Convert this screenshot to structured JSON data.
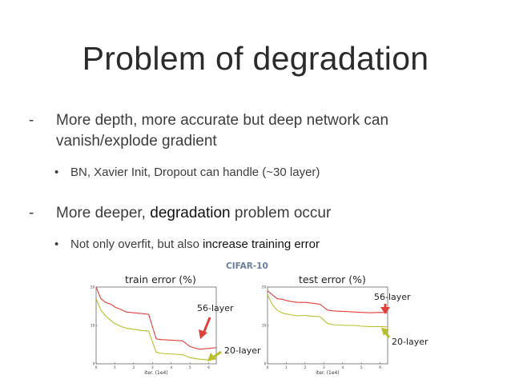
{
  "slide": {
    "title": "Problem of degradation",
    "bullet1": {
      "dash": "-",
      "line1": "More depth, more accurate but deep network can",
      "line2": "vanish/explode gradient"
    },
    "sub1": {
      "dot": "•",
      "text": "BN, Xavier Init, Dropout can handle (~30 layer)"
    },
    "bullet2": {
      "dash": "-",
      "pre": "More deeper, ",
      "em": "degradation",
      "post": " problem occur"
    },
    "sub2": {
      "dot": "•",
      "pre": "Not only overfit, but also ",
      "em": "increase training error"
    }
  },
  "figure": {
    "dataset_label": "CIFAR-10",
    "colors": {
      "deep": "#e0403a",
      "shallow": "#b7bf2a",
      "axis": "#666666"
    }
  },
  "chart_data": [
    {
      "type": "line",
      "title": "train error (%)",
      "xlabel": "iter. (1e4)",
      "ylabel": "",
      "x_ticks": [
        "0",
        "1",
        "2",
        "3",
        "4",
        "5",
        "6"
      ],
      "y_ticks": [
        "0",
        "10",
        "20"
      ],
      "xlim": [
        0,
        6.4
      ],
      "ylim": [
        0,
        20
      ],
      "series": [
        {
          "name": "56-layer",
          "x": [
            0,
            0.25,
            0.5,
            0.8,
            1.0,
            1.3,
            1.6,
            2.0,
            2.4,
            2.8,
            3.2,
            3.5,
            3.8,
            4.2,
            4.6,
            5.0,
            5.5,
            6.0,
            6.4
          ],
          "y": [
            20,
            17,
            16,
            15.5,
            14.8,
            14.2,
            13.5,
            13.3,
            13.1,
            12.9,
            6.5,
            6.3,
            6.2,
            6.1,
            6.0,
            4.5,
            3.8,
            4.0,
            4.2
          ]
        },
        {
          "name": "20-layer",
          "x": [
            0,
            0.25,
            0.5,
            0.8,
            1.0,
            1.3,
            1.6,
            2.0,
            2.4,
            2.8,
            3.2,
            3.5,
            3.8,
            4.2,
            4.6,
            5.0,
            5.5,
            6.0,
            6.4
          ],
          "y": [
            17,
            14,
            12.5,
            11.2,
            10.5,
            9.8,
            9.3,
            9.0,
            8.7,
            8.5,
            3.0,
            2.7,
            2.6,
            2.5,
            2.4,
            1.6,
            1.2,
            1.0,
            1.3
          ]
        }
      ]
    },
    {
      "type": "line",
      "title": "test error (%)",
      "xlabel": "iter. (1e4)",
      "ylabel": "",
      "x_ticks": [
        "0",
        "1",
        "2",
        "3",
        "4",
        "5",
        "6"
      ],
      "y_ticks": [
        "0",
        "10",
        "20"
      ],
      "xlim": [
        0,
        6.4
      ],
      "ylim": [
        0,
        20
      ],
      "series": [
        {
          "name": "56-layer",
          "x": [
            0,
            0.25,
            0.5,
            0.8,
            1.0,
            1.3,
            1.6,
            2.0,
            2.4,
            2.8,
            3.2,
            3.5,
            3.8,
            4.2,
            4.6,
            5.0,
            5.5,
            6.0,
            6.4
          ],
          "y": [
            19,
            18,
            17,
            16.8,
            16.5,
            16.2,
            16.0,
            16.0,
            15.8,
            15.5,
            14.0,
            13.8,
            13.7,
            13.6,
            13.5,
            13.4,
            13.3,
            13.4,
            13.3
          ]
        },
        {
          "name": "20-layer",
          "x": [
            0,
            0.25,
            0.5,
            0.8,
            1.0,
            1.3,
            1.6,
            2.0,
            2.4,
            2.8,
            3.2,
            3.5,
            3.8,
            4.2,
            4.6,
            5.0,
            5.5,
            6.0,
            6.4
          ],
          "y": [
            18,
            15.5,
            14.0,
            13.2,
            13.0,
            12.7,
            12.5,
            12.6,
            12.4,
            12.3,
            10.5,
            10.2,
            10.1,
            10.0,
            10.0,
            9.8,
            9.7,
            9.7,
            9.6
          ]
        }
      ]
    }
  ]
}
